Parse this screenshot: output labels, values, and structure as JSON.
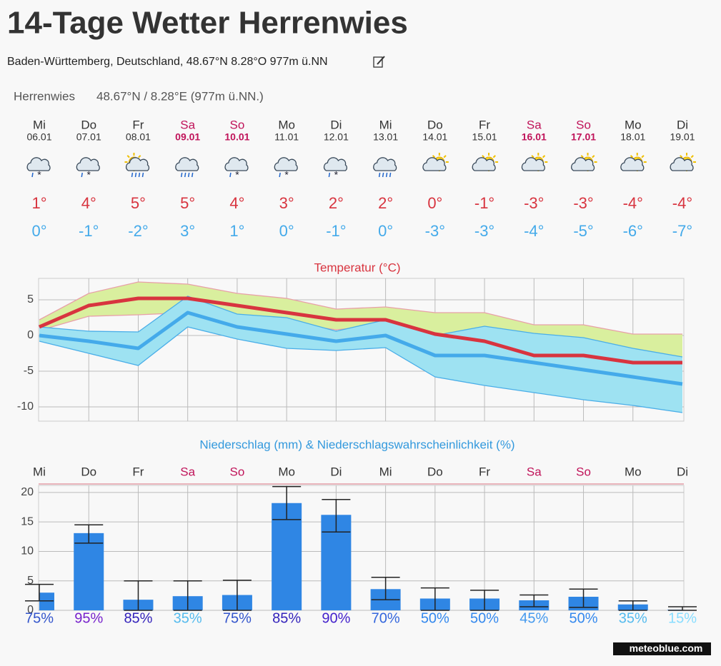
{
  "header": {
    "title": "14-Tage Wetter Herrenwies",
    "subtitle": "Baden-Württemberg, Deutschland, 48.67°N 8.28°O 977m ü.NN"
  },
  "location": {
    "name": "Herrenwies",
    "coords": "48.67°N / 8.28°E (977m ü.NN.)"
  },
  "days": [
    {
      "weekday": "Mi",
      "date": "06.01",
      "max": "1°",
      "min": "0°"
    },
    {
      "weekday": "Do",
      "date": "07.01",
      "max": "4°",
      "min": "-1°"
    },
    {
      "weekday": "Fr",
      "date": "08.01",
      "max": "5°",
      "min": "-2°"
    },
    {
      "weekday": "Sa",
      "date": "09.01",
      "max": "5°",
      "min": "3°"
    },
    {
      "weekday": "So",
      "date": "10.01",
      "max": "4°",
      "min": "1°"
    },
    {
      "weekday": "Mo",
      "date": "11.01",
      "max": "3°",
      "min": "0°"
    },
    {
      "weekday": "Di",
      "date": "12.01",
      "max": "2°",
      "min": "-1°"
    },
    {
      "weekday": "Mi",
      "date": "13.01",
      "max": "2°",
      "min": "0°"
    },
    {
      "weekday": "Do",
      "date": "14.01",
      "max": "0°",
      "min": "-3°"
    },
    {
      "weekday": "Fr",
      "date": "15.01",
      "max": "-1°",
      "min": "-3°"
    },
    {
      "weekday": "Sa",
      "date": "16.01",
      "max": "-3°",
      "min": "-4°"
    },
    {
      "weekday": "So",
      "date": "17.01",
      "max": "-3°",
      "min": "-5°"
    },
    {
      "weekday": "Mo",
      "date": "18.01",
      "max": "-4°",
      "min": "-6°"
    },
    {
      "weekday": "Di",
      "date": "19.01",
      "max": "-4°",
      "min": "-7°"
    }
  ],
  "chart_data": [
    {
      "type": "line",
      "title": "Temperatur (°C)",
      "ylim": [
        -12,
        8
      ],
      "yticks": [
        -10,
        -5,
        0,
        5
      ],
      "grid": true,
      "bands": [
        {
          "color": "#d9ef9e",
          "stroke": "#e8a0a8",
          "upper": [
            2.2,
            5.9,
            7.5,
            7.2,
            5.9,
            5.2,
            3.7,
            4,
            3.2,
            3.2,
            1.5,
            1.5,
            0.2,
            0.2
          ],
          "lower": [
            0.7,
            2.7,
            2.9,
            3.2,
            2.5,
            1.8,
            0.8,
            1.5,
            -2.5,
            -4.5,
            -6.5,
            -7,
            -7.5,
            -7.5
          ]
        },
        {
          "color": "#9ee2f2",
          "stroke": "#4aaee8",
          "upper": [
            1.2,
            0.6,
            0.5,
            5.5,
            3,
            2.5,
            0.6,
            2.2,
            0,
            1.3,
            0.3,
            -0.3,
            -1.8,
            -3
          ],
          "lower": [
            -0.8,
            -2.5,
            -4.2,
            1.2,
            -0.5,
            -1.8,
            -2.1,
            -1.7,
            -5.8,
            -7,
            -8,
            -9,
            -9.8,
            -10.8
          ]
        }
      ],
      "series": [
        {
          "color": "#44aaea",
          "width": 5,
          "values": [
            0,
            -0.8,
            -1.8,
            3.2,
            1.2,
            0.2,
            -0.8,
            0,
            -2.8,
            -2.8,
            -3.8,
            -4.8,
            -5.8,
            -6.8
          ]
        },
        {
          "color": "#d8343f",
          "width": 5,
          "values": [
            1.2,
            4.2,
            5.2,
            5.2,
            4.2,
            3.2,
            2.2,
            2.2,
            0.2,
            -0.8,
            -2.8,
            -2.8,
            -3.8,
            -3.8
          ]
        }
      ]
    },
    {
      "type": "bar",
      "title": "Niederschlag (mm) & Niederschlagswahrscheinlichkeit (%)",
      "categories": [
        "Mi",
        "Do",
        "Fr",
        "Sa",
        "So",
        "Mo",
        "Di",
        "Mi",
        "Do",
        "Fr",
        "Sa",
        "So",
        "Mo",
        "Di"
      ],
      "values": [
        3.0,
        13.1,
        1.8,
        2.4,
        2.6,
        18.2,
        16.2,
        3.6,
        2.0,
        2.0,
        1.7,
        2.3,
        1.0,
        0.1
      ],
      "error_low": [
        1.6,
        11.4,
        0,
        0,
        0,
        15.4,
        13.3,
        1.8,
        0,
        0,
        0.6,
        0.5,
        0,
        0
      ],
      "error_high": [
        4.4,
        14.5,
        5,
        5,
        5.1,
        21,
        18.8,
        5.6,
        3.8,
        3.4,
        2.6,
        3.6,
        1.6,
        0.6
      ],
      "color": "#2f86e4",
      "ylim": [
        0,
        21.2
      ],
      "yticks": [
        0,
        5,
        10,
        15,
        20
      ],
      "grid": true,
      "probabilities": [
        "75%",
        "95%",
        "85%",
        "35%",
        "75%",
        "85%",
        "90%",
        "70%",
        "50%",
        "50%",
        "45%",
        "50%",
        "35%",
        "15%"
      ],
      "probability_colors": [
        "#3355cc",
        "#7722cc",
        "#3322bb",
        "#55bbee",
        "#3355cc",
        "#3322bb",
        "#4422cc",
        "#3366dd",
        "#3388ee",
        "#3388ee",
        "#4499ee",
        "#3388ee",
        "#55bbee",
        "#88ddff"
      ]
    }
  ],
  "footer": {
    "brand": "meteoblue.com"
  }
}
